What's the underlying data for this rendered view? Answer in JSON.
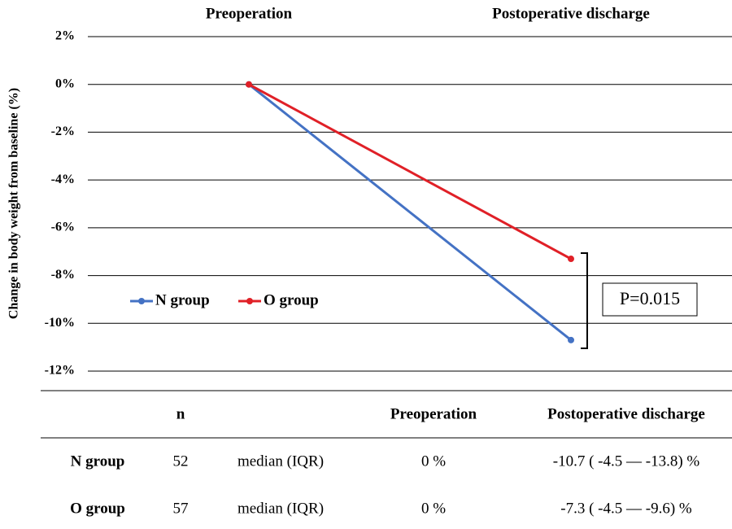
{
  "chart_data": {
    "type": "line",
    "categories": [
      "Preoperation",
      "Postoperative discharge"
    ],
    "y_label": "Change in body weight from baseline (%)",
    "series": [
      {
        "name": "N group",
        "color": "#4472c4",
        "values": [
          0,
          -10.7
        ]
      },
      {
        "name": "O group",
        "color": "#e02027",
        "values": [
          0,
          -7.3
        ]
      }
    ],
    "ylim": [
      2,
      -12
    ],
    "yticks": [
      {
        "value": 2,
        "label": "2%"
      },
      {
        "value": 0,
        "label": "0%"
      },
      {
        "value": -2,
        "label": "-2%"
      },
      {
        "value": -4,
        "label": "-4%"
      },
      {
        "value": -6,
        "label": "-6%"
      },
      {
        "value": -8,
        "label": "-8%"
      },
      {
        "value": -10,
        "label": "-10%"
      },
      {
        "value": -12,
        "label": "-12%"
      }
    ],
    "grid": true,
    "legend": "left",
    "annotation": "P=0.015"
  },
  "table": {
    "columns": [
      "n",
      "Preoperation",
      "Postoperative discharge"
    ],
    "rows": [
      [
        "N group",
        52,
        "median (IQR)",
        "0 %",
        "-10.7 ( -4.5 — -13.8) %"
      ],
      [
        "O group",
        57,
        "median (IQR)",
        "0 %",
        "-7.3 ( -4.5 — -9.6) %"
      ]
    ]
  }
}
